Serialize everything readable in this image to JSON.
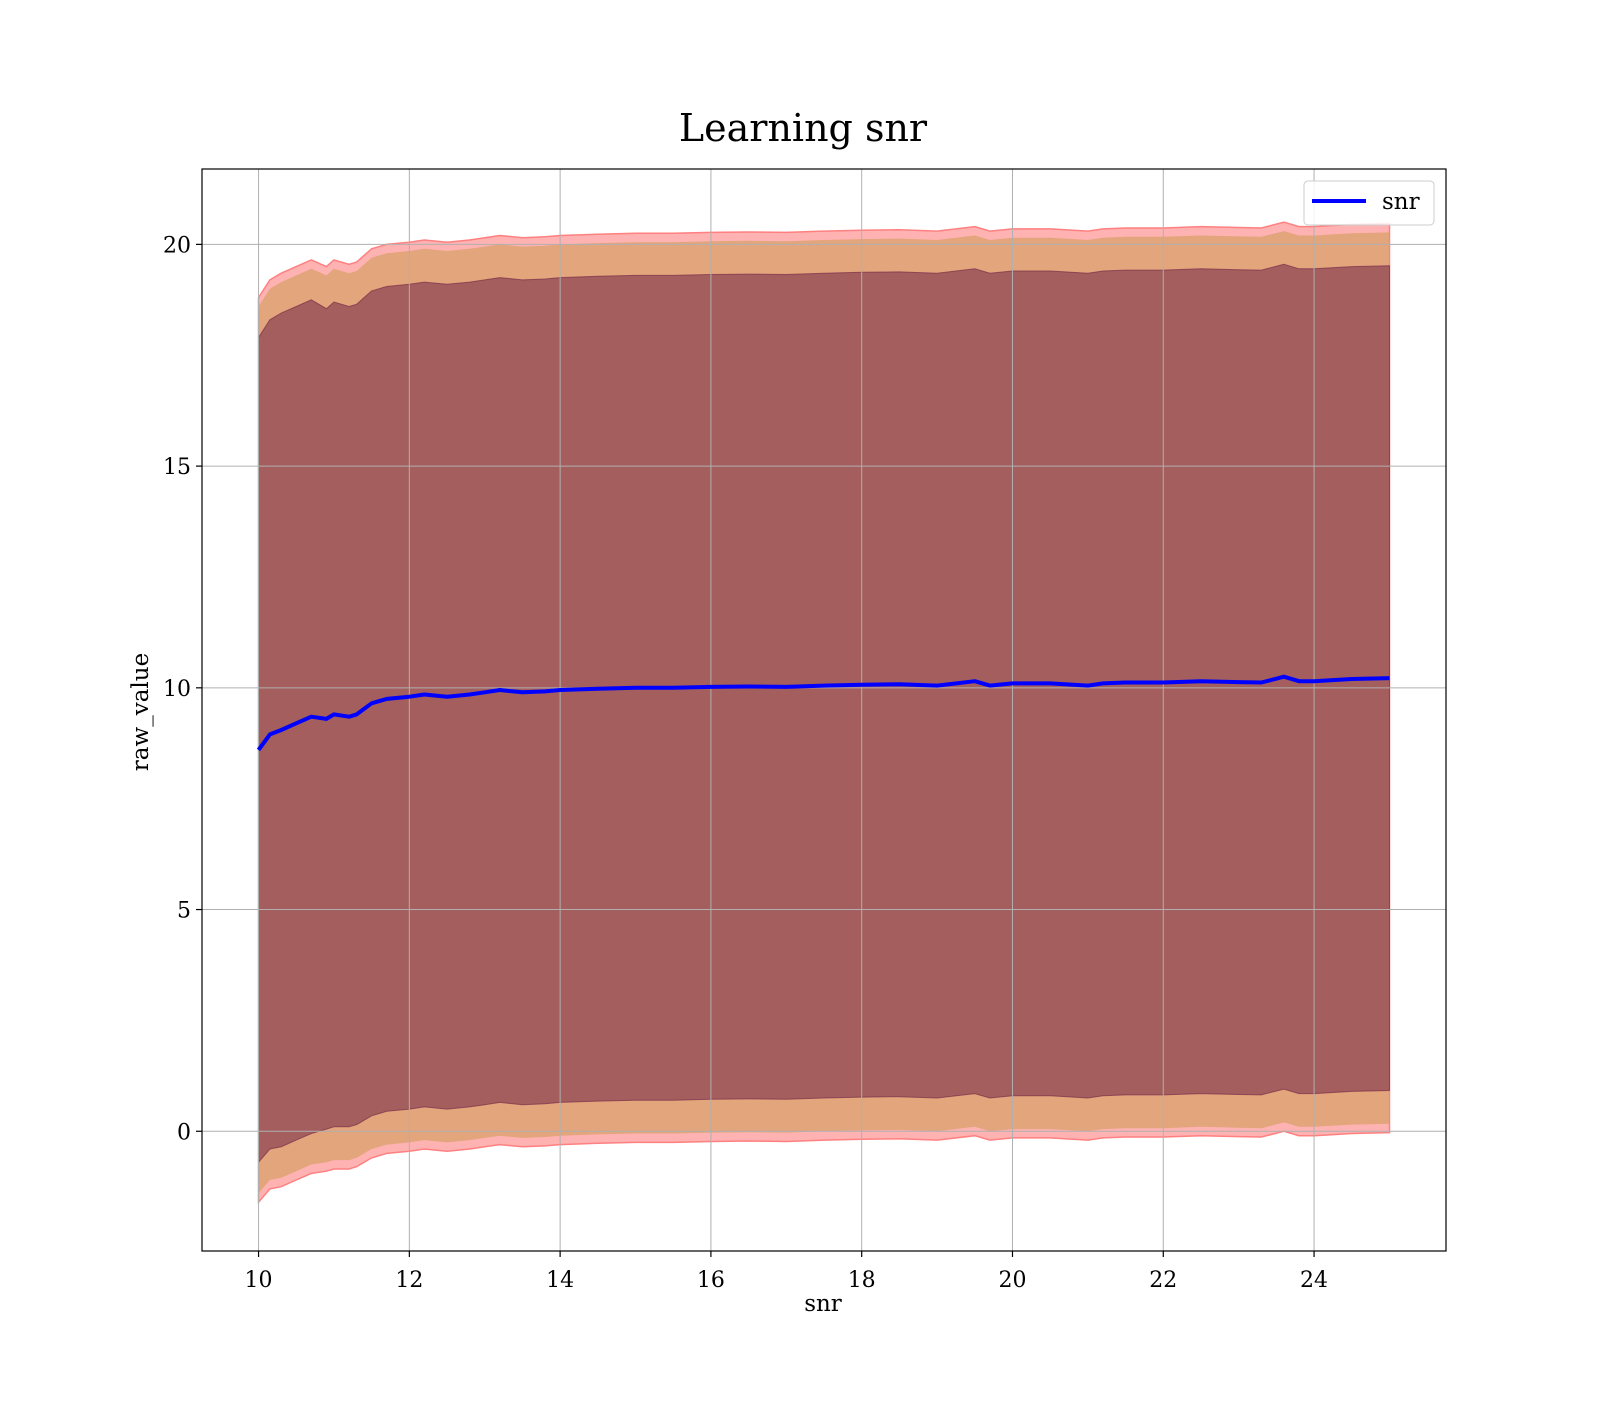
{
  "chart_data": {
    "type": "line",
    "title": "Learning snr",
    "xlabel": "snr",
    "ylabel": "raw_value",
    "xlim": [
      9.25,
      25.75
    ],
    "ylim": [
      -2.7,
      21.7
    ],
    "xticks": [
      10,
      12,
      14,
      16,
      18,
      20,
      22,
      24
    ],
    "yticks": [
      0,
      5,
      10,
      15,
      20
    ],
    "grid": true,
    "legend": {
      "position": "top-right",
      "entries": [
        "snr"
      ]
    },
    "colors": {
      "line": "#0000ff",
      "outer_band": "#ff0000",
      "outer_band_edge": "#ff8080",
      "middle_band": "#d8a06a",
      "inner_band": "#7a2e4a",
      "grid": "#b0b0b0",
      "frame": "#000000"
    },
    "series": [
      {
        "name": "snr",
        "x": [
          10.0,
          10.15,
          10.3,
          10.5,
          10.7,
          10.9,
          11.0,
          11.2,
          11.3,
          11.5,
          11.7,
          12.0,
          12.2,
          12.5,
          12.8,
          13.0,
          13.2,
          13.5,
          13.8,
          14.0,
          14.5,
          15.0,
          15.5,
          16.0,
          16.5,
          17.0,
          17.5,
          18.0,
          18.5,
          19.0,
          19.5,
          19.7,
          20.0,
          20.5,
          21.0,
          21.2,
          21.5,
          22.0,
          22.5,
          23.0,
          23.3,
          23.6,
          23.8,
          24.0,
          24.5,
          25.0
        ],
        "mean": [
          8.6,
          8.95,
          9.05,
          9.2,
          9.35,
          9.3,
          9.4,
          9.35,
          9.4,
          9.65,
          9.75,
          9.8,
          9.85,
          9.8,
          9.85,
          9.9,
          9.95,
          9.9,
          9.92,
          9.95,
          9.98,
          10.0,
          10.0,
          10.02,
          10.03,
          10.02,
          10.05,
          10.07,
          10.08,
          10.05,
          10.15,
          10.05,
          10.1,
          10.1,
          10.05,
          10.1,
          10.12,
          10.12,
          10.15,
          10.13,
          10.12,
          10.25,
          10.15,
          10.15,
          10.2,
          10.22
        ],
        "inner_upper": [
          17.9,
          18.3,
          18.45,
          18.6,
          18.75,
          18.55,
          18.7,
          18.6,
          18.65,
          18.95,
          19.05,
          19.1,
          19.15,
          19.1,
          19.15,
          19.2,
          19.25,
          19.2,
          19.22,
          19.25,
          19.28,
          19.3,
          19.3,
          19.32,
          19.33,
          19.32,
          19.35,
          19.37,
          19.38,
          19.35,
          19.45,
          19.35,
          19.4,
          19.4,
          19.35,
          19.4,
          19.42,
          19.42,
          19.45,
          19.43,
          19.42,
          19.55,
          19.45,
          19.45,
          19.5,
          19.52
        ],
        "inner_lower": [
          -0.7,
          -0.4,
          -0.35,
          -0.2,
          -0.05,
          0.05,
          0.1,
          0.1,
          0.15,
          0.35,
          0.45,
          0.5,
          0.55,
          0.5,
          0.55,
          0.6,
          0.65,
          0.6,
          0.62,
          0.65,
          0.68,
          0.7,
          0.7,
          0.72,
          0.73,
          0.72,
          0.75,
          0.77,
          0.78,
          0.75,
          0.85,
          0.75,
          0.8,
          0.8,
          0.75,
          0.8,
          0.82,
          0.82,
          0.85,
          0.83,
          0.82,
          0.95,
          0.85,
          0.85,
          0.9,
          0.92
        ],
        "middle_upper": [
          18.6,
          19.0,
          19.15,
          19.3,
          19.45,
          19.3,
          19.45,
          19.35,
          19.4,
          19.7,
          19.8,
          19.85,
          19.9,
          19.85,
          19.9,
          19.95,
          20.0,
          19.95,
          19.97,
          20.0,
          20.03,
          20.05,
          20.05,
          20.07,
          20.08,
          20.07,
          20.1,
          20.12,
          20.13,
          20.1,
          20.2,
          20.1,
          20.15,
          20.15,
          20.1,
          20.15,
          20.17,
          20.17,
          20.2,
          20.18,
          20.17,
          20.3,
          20.2,
          20.2,
          20.25,
          20.27
        ],
        "middle_lower": [
          -1.4,
          -1.1,
          -1.05,
          -0.9,
          -0.75,
          -0.7,
          -0.65,
          -0.65,
          -0.6,
          -0.4,
          -0.3,
          -0.25,
          -0.2,
          -0.25,
          -0.2,
          -0.15,
          -0.1,
          -0.15,
          -0.13,
          -0.1,
          -0.07,
          -0.05,
          -0.05,
          -0.03,
          -0.02,
          -0.03,
          0.0,
          0.02,
          0.03,
          0.0,
          0.1,
          0.0,
          0.05,
          0.05,
          0.0,
          0.05,
          0.07,
          0.07,
          0.1,
          0.08,
          0.07,
          0.2,
          0.1,
          0.1,
          0.15,
          0.17
        ],
        "outer_upper": [
          18.8,
          19.2,
          19.35,
          19.5,
          19.65,
          19.5,
          19.65,
          19.55,
          19.6,
          19.9,
          20.0,
          20.05,
          20.1,
          20.05,
          20.1,
          20.15,
          20.2,
          20.15,
          20.17,
          20.2,
          20.23,
          20.25,
          20.25,
          20.27,
          20.28,
          20.27,
          20.3,
          20.32,
          20.33,
          20.3,
          20.4,
          20.3,
          20.35,
          20.35,
          20.3,
          20.35,
          20.37,
          20.37,
          20.4,
          20.38,
          20.37,
          20.5,
          20.4,
          20.4,
          20.45,
          20.47
        ],
        "outer_lower": [
          -1.6,
          -1.3,
          -1.25,
          -1.1,
          -0.95,
          -0.9,
          -0.85,
          -0.85,
          -0.8,
          -0.6,
          -0.5,
          -0.45,
          -0.4,
          -0.45,
          -0.4,
          -0.35,
          -0.3,
          -0.35,
          -0.33,
          -0.3,
          -0.27,
          -0.25,
          -0.25,
          -0.23,
          -0.22,
          -0.23,
          -0.2,
          -0.18,
          -0.17,
          -0.2,
          -0.1,
          -0.2,
          -0.15,
          -0.15,
          -0.2,
          -0.15,
          -0.13,
          -0.13,
          -0.1,
          -0.12,
          -0.13,
          0.0,
          -0.1,
          -0.1,
          -0.05,
          -0.03
        ]
      }
    ]
  }
}
